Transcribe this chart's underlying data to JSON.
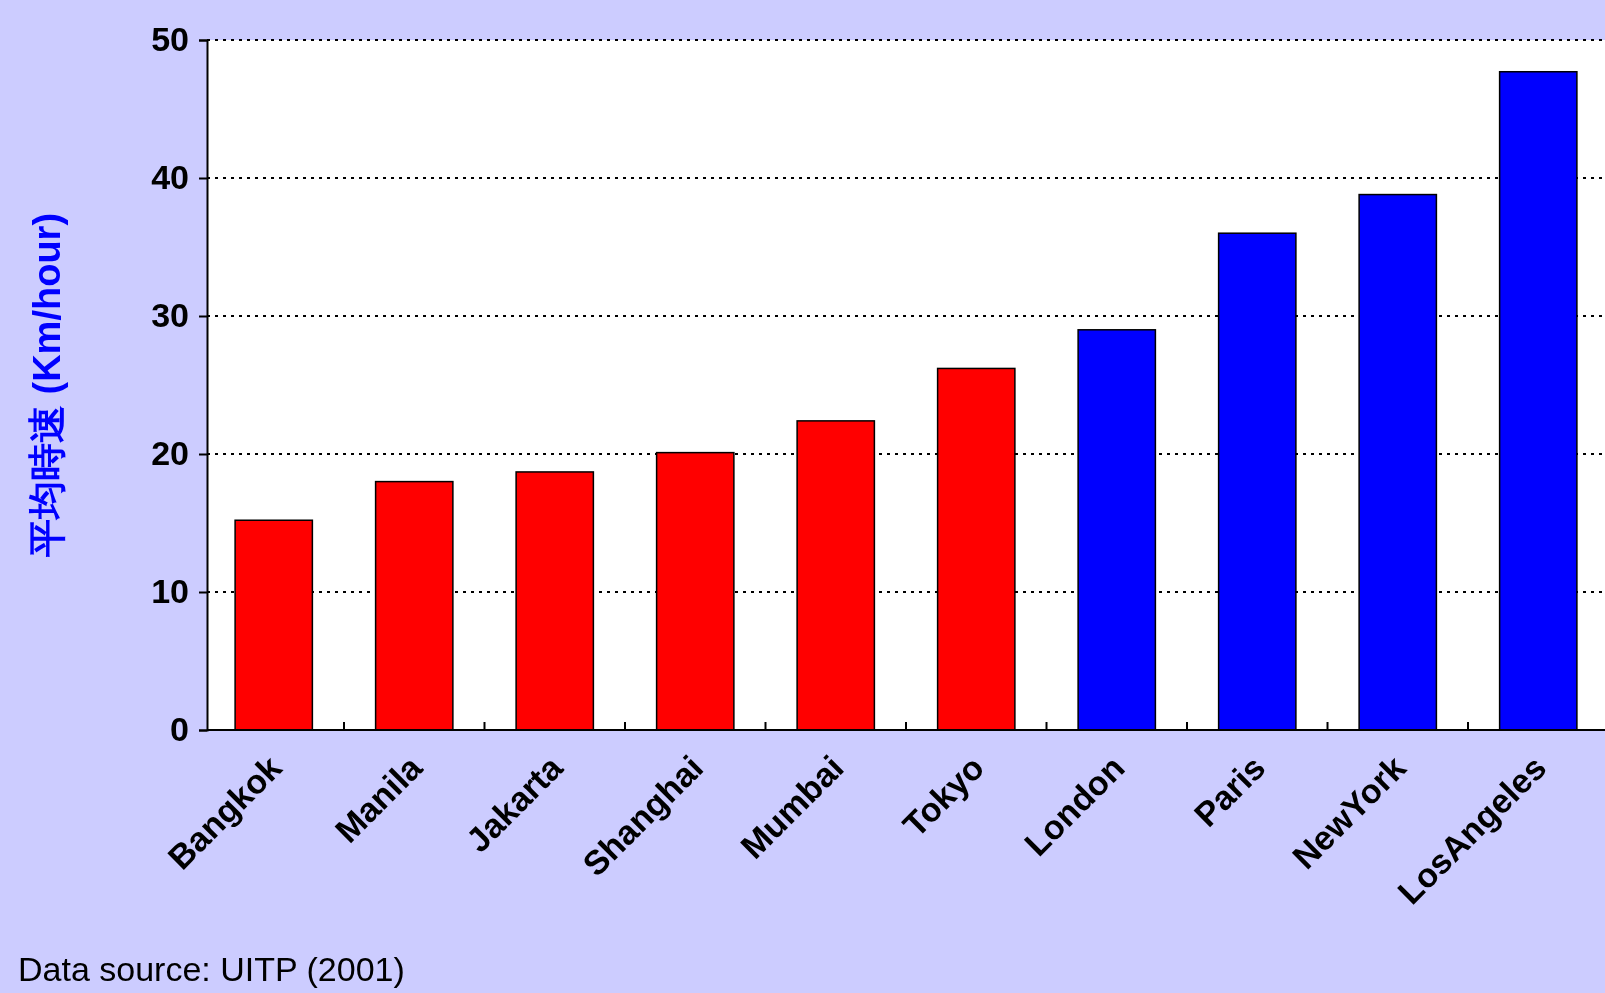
{
  "chart_data": {
    "type": "bar",
    "ylabel": "平均時速 (Km/hour)",
    "categories": [
      "Bangkok",
      "Manila",
      "Jakarta",
      "Shanghai",
      "Mumbai",
      "Tokyo",
      "London",
      "Paris",
      "NewYork",
      "LosAngeles"
    ],
    "values": [
      15.2,
      18.0,
      18.7,
      20.1,
      22.4,
      26.2,
      29.0,
      36.0,
      38.8,
      47.7
    ],
    "colors": [
      "#ff0000",
      "#ff0000",
      "#ff0000",
      "#ff0000",
      "#ff0000",
      "#ff0000",
      "#0000ff",
      "#0000ff",
      "#0000ff",
      "#0000ff"
    ],
    "ylim": [
      0,
      50
    ],
    "yticks": [
      0,
      10,
      20,
      30,
      40,
      50
    ],
    "grid": "y",
    "annotations": [
      "Data source: UITP (2001)"
    ]
  }
}
